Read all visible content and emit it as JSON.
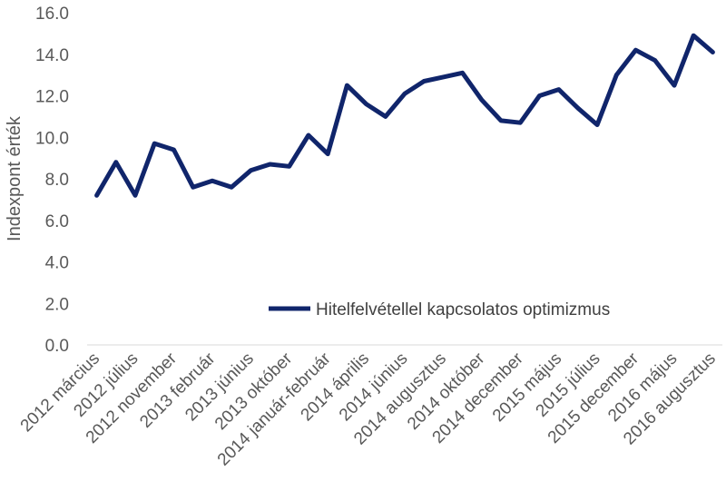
{
  "chart_data": {
    "type": "line",
    "title": "",
    "xlabel": "",
    "ylabel": "Indexpont érték",
    "ylim": [
      0,
      16
    ],
    "y_ticks": [
      "0.0",
      "2.0",
      "4.0",
      "6.0",
      "8.0",
      "10.0",
      "12.0",
      "14.0",
      "16.0"
    ],
    "grid": false,
    "legend_position": "bottom-right",
    "x": [
      "2012 március",
      "",
      "2012 július",
      "",
      "2012 november",
      "",
      "2013 február",
      "",
      "2013 június",
      "",
      "2013 október",
      "",
      "2014 január-február",
      "",
      "2014 április",
      "",
      "2014 június",
      "",
      "2014 augusztus",
      "",
      "2014 október",
      "",
      "2014 december",
      "",
      "2015 május",
      "",
      "2015 július",
      "",
      "2015 december",
      "",
      "2016 május",
      "",
      "2016 augusztus"
    ],
    "series": [
      {
        "name": "Hitelfelvétellel kapcsolatos optimizmus",
        "color": "#10256b",
        "values": [
          7.2,
          8.8,
          7.2,
          9.7,
          9.4,
          7.6,
          7.9,
          7.6,
          8.4,
          8.7,
          8.6,
          10.1,
          9.2,
          12.5,
          11.6,
          11.0,
          12.1,
          12.7,
          12.9,
          13.1,
          11.8,
          10.8,
          10.7,
          12.0,
          12.3,
          11.4,
          10.6,
          13.0,
          14.2,
          13.7,
          12.5,
          14.9,
          14.1
        ]
      }
    ]
  }
}
